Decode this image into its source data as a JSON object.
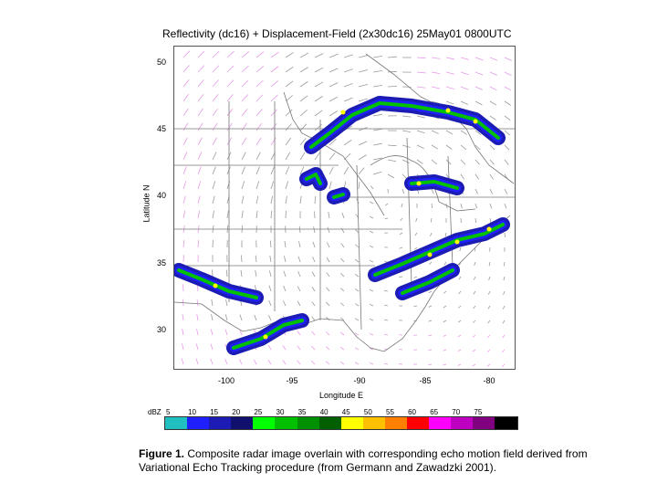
{
  "figure": {
    "title": "Reflectivity (dc16) + Displacement-Field (2x30dc16) 25May01 0800UTC",
    "ylabel": "Latitude N",
    "xlabel": "Longitude E",
    "yticks": [
      "50",
      "45",
      "40",
      "35",
      "30"
    ],
    "xticks": [
      "-100",
      "-95",
      "-90",
      "-85",
      "-80"
    ]
  },
  "chart_data": {
    "type": "heatmap",
    "title": "Reflectivity (dc16) + Displacement-Field (2x30dc16) 25May01 0800UTC",
    "xlabel": "Longitude E",
    "ylabel": "Latitude N",
    "xlim": [
      -104,
      -79
    ],
    "ylim": [
      27,
      51
    ],
    "x_ticks": [
      -100,
      -95,
      -90,
      -85,
      -80
    ],
    "y_ticks": [
      50,
      45,
      40,
      35,
      30
    ],
    "colorbar_label": "dBZ",
    "colorbar_levels": [
      5,
      10,
      15,
      20,
      25,
      30,
      35,
      40,
      45,
      50,
      55,
      60,
      65,
      70,
      75
    ],
    "colorbar_colors": [
      "#20c0c0",
      "#2020ff",
      "#1c1cb4",
      "#10106e",
      "#00ff00",
      "#00c000",
      "#009000",
      "#006000",
      "#ffff00",
      "#ffc000",
      "#ff8000",
      "#ff0000",
      "#ff00ff",
      "#c000c0",
      "#800080",
      "#000000"
    ]
  },
  "legend": {
    "label": "dBZ",
    "numbers": [
      "5",
      "10",
      "15",
      "20",
      "25",
      "30",
      "35",
      "40",
      "45",
      "50",
      "55",
      "60",
      "65",
      "70",
      "75"
    ]
  },
  "caption": {
    "bold": "Figure 1.",
    "text": " Composite radar image overlain with corresponding echo motion field derived from Variational Echo Tracking procedure (from Germann and Zawadzki 2001)."
  }
}
